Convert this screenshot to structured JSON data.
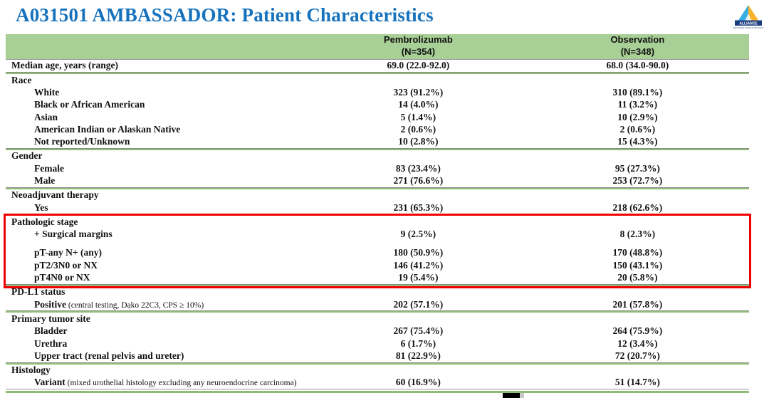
{
  "slide": {
    "title": "A031501 AMBASSADOR: Patient Characteristics",
    "logo": {
      "name": "ALLIANCE",
      "subtext": "FOR CLINICAL TRIALS IN ONCOLOGY"
    }
  },
  "colors": {
    "title_blue": "#1672BD",
    "header_green": "#A8CF96",
    "line_green": "#8FBD72",
    "highlight_red": "#F20000",
    "logo_teal": "#3AAFE4",
    "logo_yellow": "#F9B22B",
    "logo_navy": "#1D3E7E"
  },
  "table": {
    "columns": [
      {
        "line1": "Pembrolizumab",
        "line2": "(N=354)"
      },
      {
        "line1": "Observation",
        "line2": "(N=348)"
      }
    ],
    "sections": [
      {
        "rows": [
          {
            "label": "Median age, years (range)",
            "indent": false,
            "values": [
              "69.0 (22.0-92.0)",
              "68.0 (34.0-90.0)"
            ]
          }
        ]
      },
      {
        "rows": [
          {
            "label": "Race",
            "indent": false,
            "values": [
              "",
              ""
            ]
          },
          {
            "label": "White",
            "indent": true,
            "values": [
              "323 (91.2%)",
              "310 (89.1%)"
            ]
          },
          {
            "label": "Black or African American",
            "indent": true,
            "values": [
              "14 (4.0%)",
              "11 (3.2%)"
            ]
          },
          {
            "label": "Asian",
            "indent": true,
            "values": [
              "5 (1.4%)",
              "10 (2.9%)"
            ]
          },
          {
            "label": "American Indian or Alaskan Native",
            "indent": true,
            "values": [
              "2 (0.6%)",
              "2 (0.6%)"
            ]
          },
          {
            "label": "Not reported/Unknown",
            "indent": true,
            "values": [
              "10 (2.8%)",
              "15 (4.3%)"
            ]
          }
        ]
      },
      {
        "rows": [
          {
            "label": "Gender",
            "indent": false,
            "values": [
              "",
              ""
            ]
          },
          {
            "label": "Female",
            "indent": true,
            "values": [
              "83 (23.4%)",
              "95 (27.3%)"
            ]
          },
          {
            "label": "Male",
            "indent": true,
            "values": [
              "271 (76.6%)",
              "253 (72.7%)"
            ]
          }
        ]
      },
      {
        "rows": [
          {
            "label": "Neoadjuvant therapy",
            "indent": false,
            "values": [
              "",
              ""
            ]
          },
          {
            "label": "Yes",
            "indent": true,
            "values": [
              "231 (65.3%)",
              "218 (62.6%)"
            ]
          }
        ]
      },
      {
        "highlight": true,
        "rows": [
          {
            "label": "Pathologic stage",
            "indent": false,
            "values": [
              "",
              ""
            ]
          },
          {
            "label": "+ Surgical margins",
            "indent": true,
            "gap_below": true,
            "values": [
              "9 (2.5%)",
              "8 (2.3%)"
            ]
          },
          {
            "label": "pT-any N+ (any)",
            "indent": true,
            "values": [
              "180 (50.9%)",
              "170 (48.8%)"
            ]
          },
          {
            "label": "pT2/3N0 or NX",
            "indent": true,
            "values": [
              "146 (41.2%)",
              "150 (43.1%)"
            ]
          },
          {
            "label": "pT4N0 or NX",
            "indent": true,
            "values": [
              "19 (5.4%)",
              "20 (5.8%)"
            ]
          }
        ]
      },
      {
        "rows": [
          {
            "label": "PD-L1 status",
            "indent": false,
            "values": [
              "",
              ""
            ]
          },
          {
            "label": "Positive",
            "note": "(central testing, Dako 22C3, CPS ≥ 10%)",
            "indent": true,
            "values": [
              "202 (57.1%)",
              "201 (57.8%)"
            ]
          }
        ]
      },
      {
        "rows": [
          {
            "label": "Primary tumor site",
            "indent": false,
            "values": [
              "",
              ""
            ]
          },
          {
            "label": "Bladder",
            "indent": true,
            "values": [
              "267 (75.4%)",
              "264 (75.9%)"
            ]
          },
          {
            "label": "Urethra",
            "indent": true,
            "values": [
              "6 (1.7%)",
              "12 (3.4%)"
            ]
          },
          {
            "label": "Upper tract (renal pelvis and ureter)",
            "indent": true,
            "values": [
              "81 (22.9%)",
              "72 (20.7%)"
            ]
          }
        ]
      },
      {
        "rows": [
          {
            "label": "Histology",
            "indent": false,
            "values": [
              "",
              ""
            ]
          },
          {
            "label": "Variant",
            "note": "(mixed urothelial histology excluding any neuroendocrine carcinoma)",
            "indent": true,
            "values": [
              "60 (16.9%)",
              "51 (14.7%)"
            ]
          }
        ]
      }
    ]
  }
}
